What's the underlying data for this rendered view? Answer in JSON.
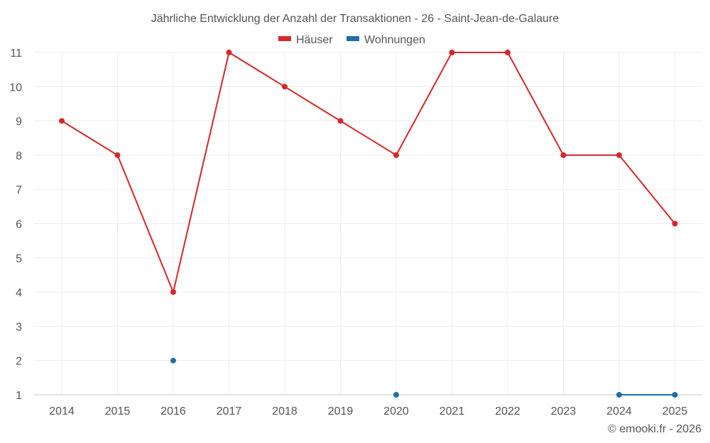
{
  "chart_data": {
    "type": "line",
    "title": "Jährliche Entwicklung der Anzahl der Transaktionen - 26 - Saint-Jean-de-Galaure",
    "categories": [
      "2014",
      "2015",
      "2016",
      "2017",
      "2018",
      "2019",
      "2020",
      "2021",
      "2022",
      "2023",
      "2024",
      "2025"
    ],
    "series": [
      {
        "name": "Häuser",
        "color": "#d62728",
        "values": [
          9,
          8,
          4,
          11,
          10,
          9,
          8,
          11,
          11,
          8,
          8,
          6
        ]
      },
      {
        "name": "Wohnungen",
        "color": "#1f6fa8",
        "values": [
          null,
          null,
          2,
          null,
          null,
          null,
          1,
          null,
          null,
          null,
          1,
          1
        ]
      }
    ],
    "ylim": [
      1,
      11
    ],
    "yticks": [
      1,
      2,
      3,
      4,
      5,
      6,
      7,
      8,
      9,
      10,
      11
    ],
    "xlabel": "",
    "ylabel": "",
    "grid": true,
    "legend": "top-center"
  },
  "credit": "© emooki.fr - 2026"
}
